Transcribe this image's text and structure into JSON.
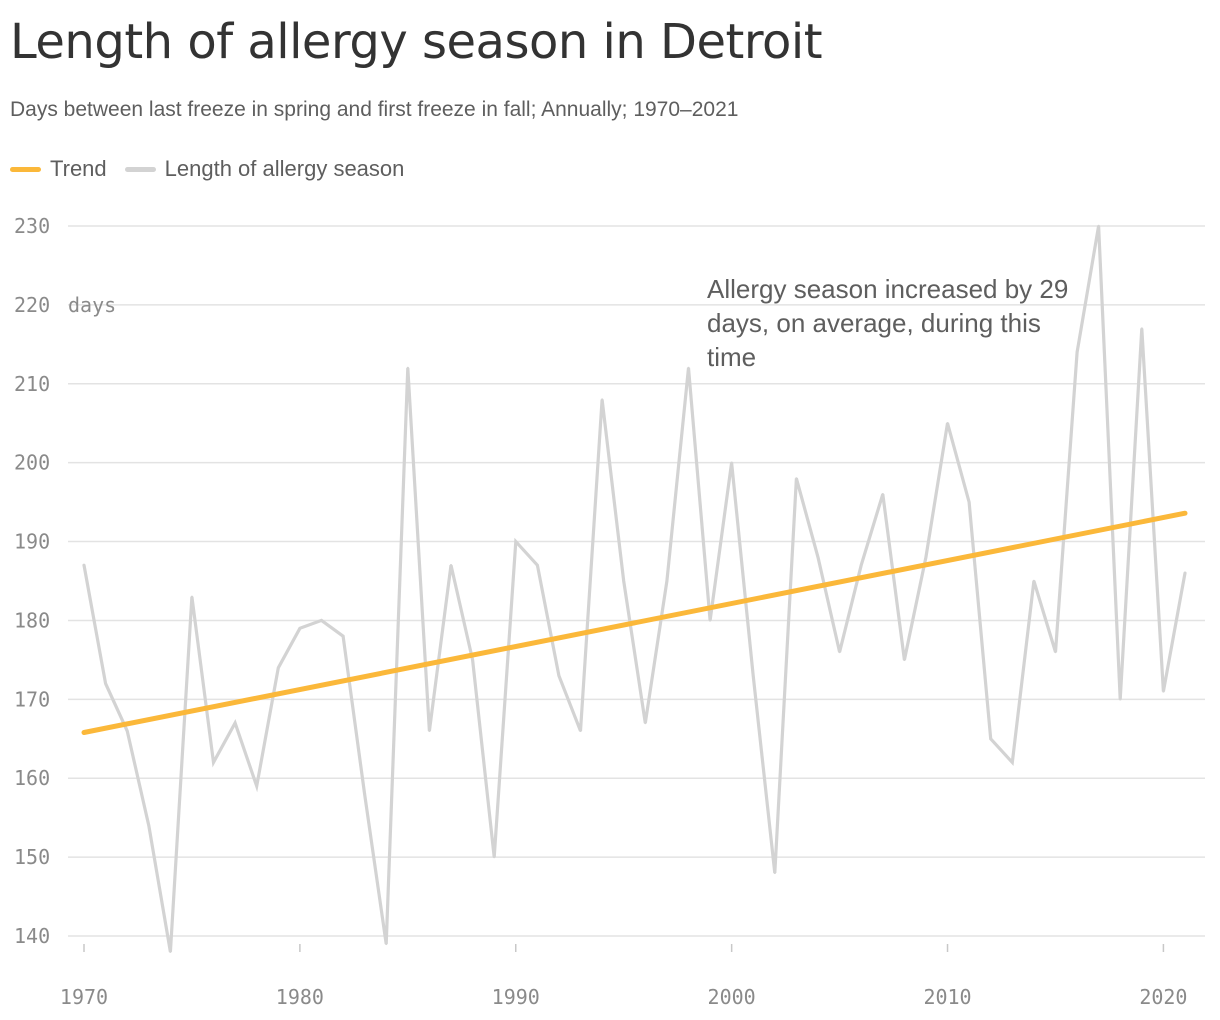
{
  "title": "Length of allergy season in Detroit",
  "subtitle": "Days between last freeze in spring and first freeze in fall; Annually; 1970–2021",
  "legend": {
    "trend_label": "Trend",
    "series_label": "Length of allergy season",
    "trend_color": "#fbb83a",
    "series_color": "#d3d3d3"
  },
  "annotation": "Allergy season increased by 29 days, on average, during this time",
  "y_unit_label": "days",
  "chart_data": {
    "type": "line",
    "xlim": [
      1970,
      2021
    ],
    "ylim": [
      138,
      230
    ],
    "y_ticks": [
      140,
      150,
      160,
      170,
      180,
      190,
      200,
      210,
      220,
      230
    ],
    "x_ticks": [
      1970,
      1980,
      1990,
      2000,
      2010,
      2020
    ],
    "grid": true,
    "legend_position": "top-left",
    "series": [
      {
        "name": "Length of allergy season",
        "color": "#d3d3d3",
        "x": [
          1970,
          1971,
          1972,
          1973,
          1974,
          1975,
          1976,
          1977,
          1978,
          1979,
          1980,
          1981,
          1982,
          1983,
          1984,
          1985,
          1986,
          1987,
          1988,
          1989,
          1990,
          1991,
          1992,
          1993,
          1994,
          1995,
          1996,
          1997,
          1998,
          1999,
          2000,
          2001,
          2002,
          2003,
          2004,
          2005,
          2006,
          2007,
          2008,
          2009,
          2010,
          2011,
          2012,
          2013,
          2014,
          2015,
          2016,
          2017,
          2018,
          2019,
          2020,
          2021
        ],
        "values": [
          187,
          172,
          166,
          154,
          138,
          183,
          162,
          167,
          159,
          174,
          179,
          180,
          178,
          158,
          139,
          212,
          166,
          187,
          175,
          150,
          190,
          187,
          173,
          166,
          208,
          185,
          167,
          185,
          212,
          180,
          200,
          173,
          148,
          198,
          188,
          176,
          187,
          196,
          175,
          188,
          205,
          195,
          165,
          162,
          185,
          176,
          214,
          230,
          170,
          217,
          171,
          186
        ]
      },
      {
        "name": "Trend",
        "color": "#fbb83a",
        "x": [
          1970,
          2021
        ],
        "values": [
          165.8,
          193.6
        ]
      }
    ]
  }
}
